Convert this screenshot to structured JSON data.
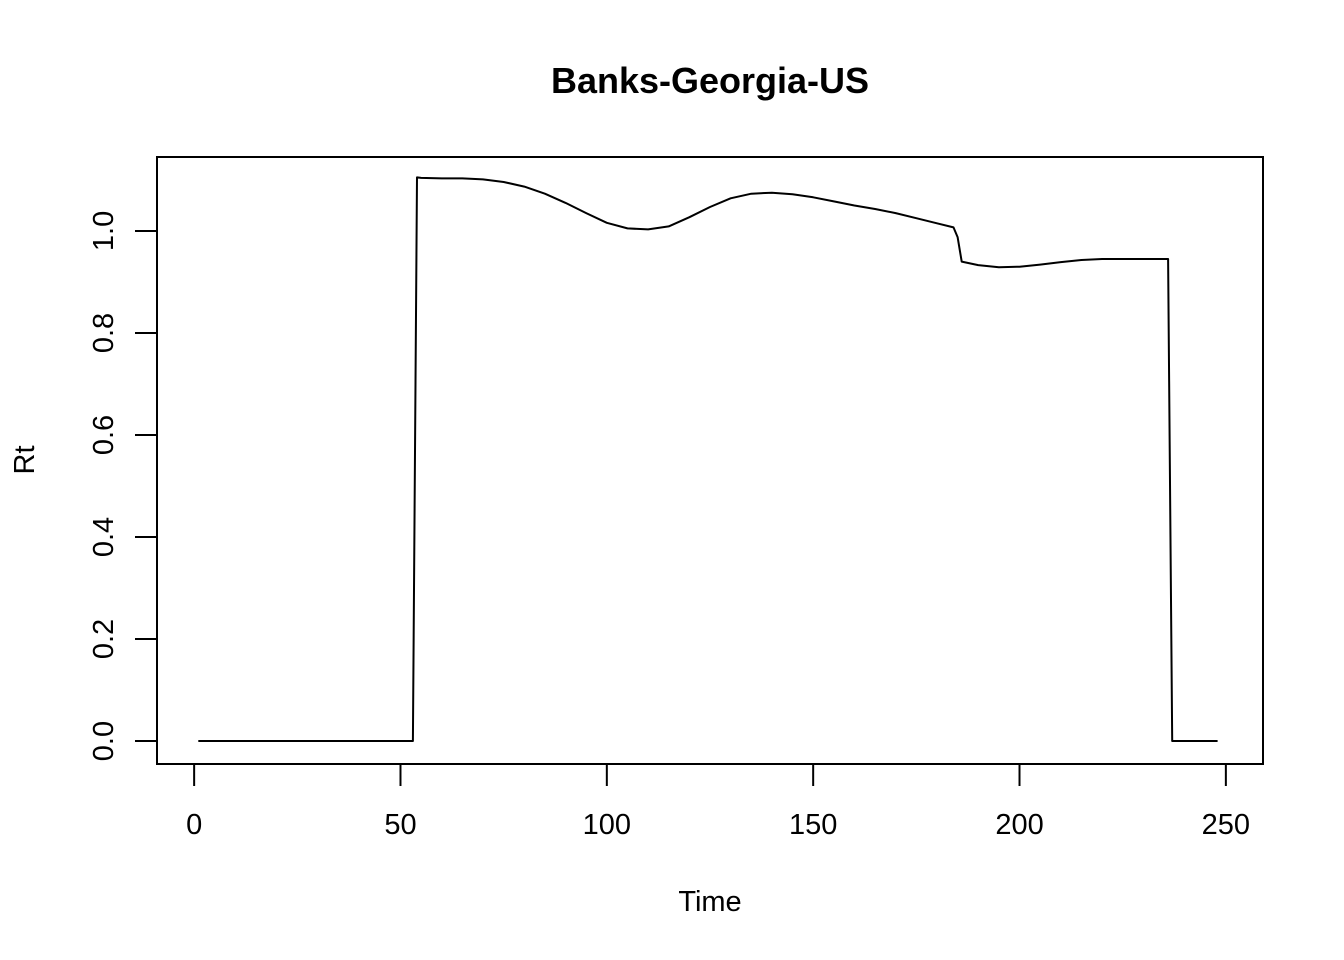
{
  "chart_data": {
    "type": "line",
    "title": "Banks-Georgia-US",
    "xlabel": "Time",
    "ylabel": "Rt",
    "xlim": [
      -9,
      259
    ],
    "ylim": [
      -0.045,
      1.145
    ],
    "x_ticks": [
      0,
      50,
      100,
      150,
      200,
      250
    ],
    "y_ticks": [
      0.0,
      0.2,
      0.4,
      0.6,
      0.8,
      1.0
    ],
    "x_tick_labels": [
      "0",
      "50",
      "100",
      "150",
      "200",
      "250"
    ],
    "y_tick_labels": [
      "0.0",
      "0.2",
      "0.4",
      "0.6",
      "0.8",
      "1.0"
    ],
    "grid": false,
    "legend": "none",
    "line_color": "#000000",
    "series": [
      {
        "x": [
          1,
          53,
          54,
          55,
          60,
          65,
          70,
          75,
          80,
          85,
          90,
          95,
          100,
          105,
          110,
          115,
          120,
          125,
          130,
          135,
          140,
          145,
          150,
          155,
          160,
          165,
          170,
          175,
          180,
          184,
          185,
          186,
          190,
          195,
          200,
          205,
          210,
          215,
          220,
          225,
          230,
          236,
          237,
          248
        ],
        "y": [
          0,
          0,
          1.105,
          1.104,
          1.103,
          1.103,
          1.101,
          1.096,
          1.087,
          1.073,
          1.055,
          1.035,
          1.016,
          1.005,
          1.003,
          1.009,
          1.027,
          1.047,
          1.064,
          1.073,
          1.075,
          1.072,
          1.066,
          1.058,
          1.05,
          1.043,
          1.035,
          1.025,
          1.015,
          1.007,
          0.988,
          0.94,
          0.933,
          0.929,
          0.93,
          0.934,
          0.939,
          0.943,
          0.945,
          0.945,
          0.945,
          0.945,
          0,
          0
        ]
      }
    ]
  }
}
